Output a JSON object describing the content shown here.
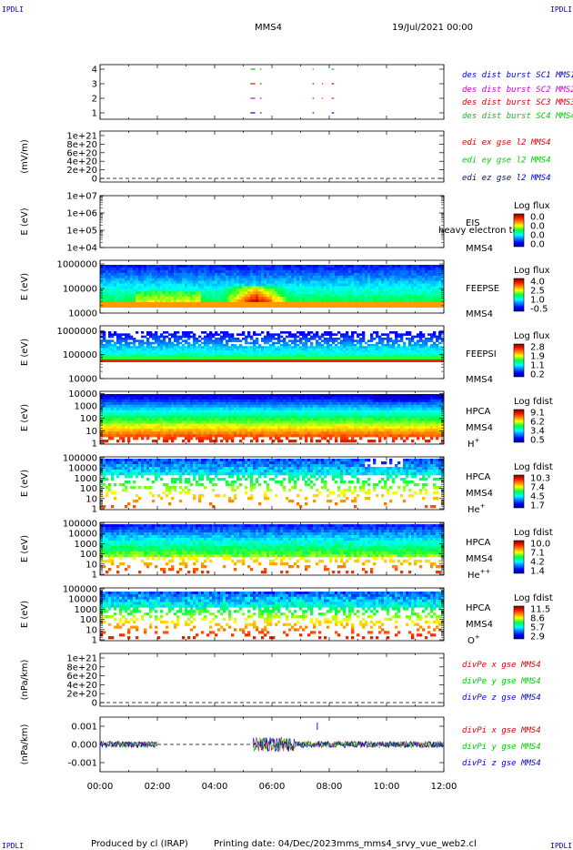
{
  "header": {
    "corner_tl": "IPDLI",
    "corner_tr": "IPDLI",
    "corner_bl": "IPDLI",
    "corner_br": "IPDLI",
    "title": "MMS4",
    "date": "19/Jul/2021 00:00"
  },
  "footer": {
    "produced_by": "Produced by cl (IRAP)",
    "printing_date": "Printing date: 04/Dec/2023",
    "script": "mms_mms4_srvy_vue_web2.cl"
  },
  "x_axis": {
    "ticks": [
      "00:00",
      "02:00",
      "04:00",
      "06:00",
      "08:00",
      "10:00",
      "12:00"
    ]
  },
  "colors": {
    "red": "#dd0000",
    "green": "#00cc00",
    "blue": "#0000cc",
    "magenta": "#cc00cc"
  },
  "chart_data": [
    {
      "id": "des-burst",
      "type": "scatter",
      "xlim": [
        "00:00",
        "12:00"
      ],
      "yticks": [
        "1",
        "2",
        "3",
        "4"
      ],
      "series": [
        {
          "name": "des dist burst SC1 MMS1",
          "color": "#0000cc",
          "y": 1,
          "segments": [
            [
              "05:15",
              "05:25"
            ],
            [
              "05:35",
              "05:38"
            ],
            [
              "07:25",
              "07:28"
            ],
            [
              "08:05",
              "08:10"
            ]
          ]
        },
        {
          "name": "des dist burst SC2 MMS2",
          "color": "#cc00cc",
          "y": 2,
          "segments": [
            [
              "05:15",
              "05:25"
            ],
            [
              "05:35",
              "05:38"
            ],
            [
              "07:25",
              "07:28"
            ],
            [
              "07:45",
              "07:47"
            ],
            [
              "08:05",
              "08:10"
            ]
          ]
        },
        {
          "name": "des dist burst SC3 MMS3",
          "color": "#dd0000",
          "y": 3,
          "segments": [
            [
              "05:15",
              "05:25"
            ],
            [
              "05:35",
              "05:38"
            ],
            [
              "07:25",
              "07:28"
            ],
            [
              "07:45",
              "07:47"
            ],
            [
              "08:05",
              "08:10"
            ]
          ]
        },
        {
          "name": "des dist burst SC4 MMS4",
          "color": "#00cc00",
          "y": 4,
          "segments": [
            [
              "05:15",
              "05:25"
            ],
            [
              "05:35",
              "05:38"
            ],
            [
              "07:25",
              "07:28"
            ],
            [
              "08:05",
              "08:10"
            ]
          ]
        }
      ]
    },
    {
      "id": "edi-e",
      "type": "line",
      "ylabel": "(mV/m)",
      "yticks": [
        "0",
        "2e+20",
        "4e+20",
        "6e+20",
        "8e+20",
        "1e+21"
      ],
      "series": [
        {
          "name": "edi ex gse l2 MMS4",
          "color": "#dd0000"
        },
        {
          "name": "edi ey gse l2 MMS4",
          "color": "#00cc00"
        },
        {
          "name": "edi ez gse l2 MMS4",
          "color": "#0000cc"
        }
      ]
    },
    {
      "id": "eis",
      "type": "heatmap",
      "ylabel": "E (eV)",
      "yticks": [
        "1e+04",
        "1e+05",
        "1e+06",
        "1e+07"
      ],
      "labels": [
        "EIS",
        "MMS4"
      ],
      "overlay_text": "heavy electron to",
      "colorbar": {
        "title": "Log flux",
        "ticks": [
          "0.0",
          "0.0",
          "0.0",
          "0.0"
        ]
      }
    },
    {
      "id": "feepse",
      "type": "heatmap",
      "ylabel": "E (eV)",
      "yticks": [
        "10000",
        "100000",
        "1000000"
      ],
      "labels": [
        "FEEPSE",
        "MMS4"
      ],
      "colorbar": {
        "title": "Log flux",
        "ticks": [
          "4.0",
          "2.5",
          "1.0",
          "-0.5"
        ]
      }
    },
    {
      "id": "feepsi",
      "type": "heatmap",
      "ylabel": "E (eV)",
      "yticks": [
        "10000",
        "100000",
        "1000000"
      ],
      "labels": [
        "FEEPSI",
        "MMS4"
      ],
      "colorbar": {
        "title": "Log flux",
        "ticks": [
          "2.8",
          "1.9",
          "1.1",
          "0.2"
        ]
      }
    },
    {
      "id": "hpca-h",
      "type": "heatmap",
      "ylabel": "E (eV)",
      "yticks": [
        "1",
        "10",
        "100",
        "1000",
        "10000"
      ],
      "labels": [
        "HPCA",
        "MMS4"
      ],
      "species": "H",
      "species_sup": "+",
      "colorbar": {
        "title": "Log fdist",
        "ticks": [
          "9.1",
          "6.2",
          "3.4",
          "0.5"
        ]
      }
    },
    {
      "id": "hpca-he",
      "type": "heatmap",
      "ylabel": "E (eV)",
      "yticks": [
        "1",
        "10",
        "100",
        "1000",
        "10000",
        "100000"
      ],
      "labels": [
        "HPCA",
        "MMS4"
      ],
      "species": "He",
      "species_sup": "+",
      "colorbar": {
        "title": "Log fdist",
        "ticks": [
          "10.3",
          "7.4",
          "4.5",
          "1.7"
        ]
      }
    },
    {
      "id": "hpca-he2",
      "type": "heatmap",
      "ylabel": "E (eV)",
      "yticks": [
        "1",
        "10",
        "100",
        "1000",
        "10000",
        "100000"
      ],
      "labels": [
        "HPCA",
        "MMS4"
      ],
      "species": "He",
      "species_sup": "++",
      "colorbar": {
        "title": "Log fdist",
        "ticks": [
          "10.0",
          "7.1",
          "4.2",
          "1.4"
        ]
      }
    },
    {
      "id": "hpca-o",
      "type": "heatmap",
      "ylabel": "E (eV)",
      "yticks": [
        "1",
        "10",
        "100",
        "1000",
        "10000",
        "100000"
      ],
      "labels": [
        "HPCA",
        "MMS4"
      ],
      "species": "O",
      "species_sup": "+",
      "colorbar": {
        "title": "Log fdist",
        "ticks": [
          "11.5",
          "8.6",
          "5.7",
          "2.9"
        ]
      }
    },
    {
      "id": "divpe",
      "type": "line",
      "ylabel": "(nPa/km)",
      "yticks": [
        "0",
        "2e+20",
        "4e+20",
        "6e+20",
        "8e+20",
        "1e+21"
      ],
      "series": [
        {
          "name": "divPe x gse MMS4",
          "color": "#dd0000"
        },
        {
          "name": "divPe y gse MMS4",
          "color": "#00cc00"
        },
        {
          "name": "divPe z gse MMS4",
          "color": "#0000cc"
        }
      ]
    },
    {
      "id": "divpi",
      "type": "line",
      "ylabel": "(nPa/km)",
      "yticks": [
        "-0.001",
        "0.000",
        "0.001"
      ],
      "ylim": [
        -0.0015,
        0.0015
      ],
      "data_gap": [
        "02:00",
        "05:20"
      ],
      "spike_time": "07:35",
      "series": [
        {
          "name": "divPi x gse MMS4",
          "color": "#dd0000"
        },
        {
          "name": "divPi y gse MMS4",
          "color": "#00cc00"
        },
        {
          "name": "divPi z gse MMS4",
          "color": "#0000cc"
        }
      ]
    }
  ]
}
